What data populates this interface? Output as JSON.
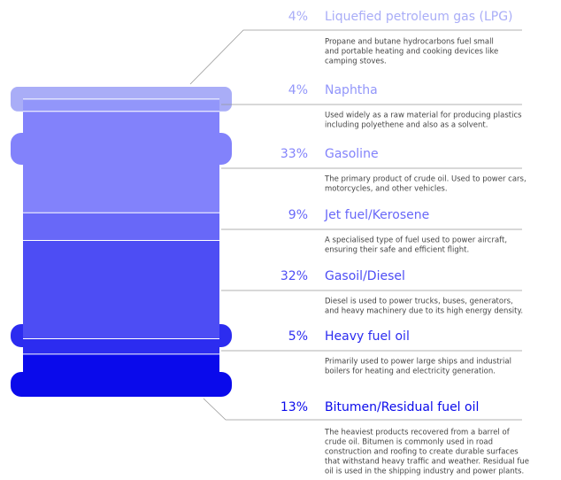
{
  "chart_data": {
    "type": "barrel",
    "categories": [
      "Liquefied petroleum gas (LPG)",
      "Naphtha",
      "Gasoline",
      "Jet fuel/Kerosene",
      "Gasoil/Diesel",
      "Heavy fuel oil",
      "Bitumen/Residual fuel oil"
    ],
    "values": [
      4,
      4,
      33,
      9,
      32,
      5,
      13
    ],
    "value_labels": [
      "4%",
      "4%",
      "33%",
      "9%",
      "32%",
      "5%",
      "13%"
    ],
    "colors": [
      "#a9adf7",
      "#9296fa",
      "#8282fb",
      "#6868f8",
      "#4d4df4",
      "#2c2cf0",
      "#0a0aeb"
    ],
    "descriptions": [
      [
        "Propane and butane hydrocarbons fuel small",
        "and portable heating and cooking devices like",
        "camping stoves."
      ],
      [
        "Used widely as a raw material for producing plastics",
        "including polyethene and also as a solvent."
      ],
      [
        "The primary product of crude oil. Used to power cars,",
        "motorcycles, and other vehicles."
      ],
      [
        "A specialised type of fuel used to power aircraft,",
        "ensuring their safe and efficient flight."
      ],
      [
        "Diesel is used to power trucks, buses, generators,",
        "and heavy machinery due to its high energy density."
      ],
      [
        "Primarily used to power large ships and industrial",
        "boilers for heating and electricity generation."
      ],
      [
        "The heaviest products recovered from a barrel of",
        "crude oil. Bitumen is commonly used in road",
        "construction and roofing to create durable surfaces",
        "that withstand heavy traffic and weather. Residual fue",
        "oil is used in the shipping industry and power plants."
      ]
    ]
  }
}
